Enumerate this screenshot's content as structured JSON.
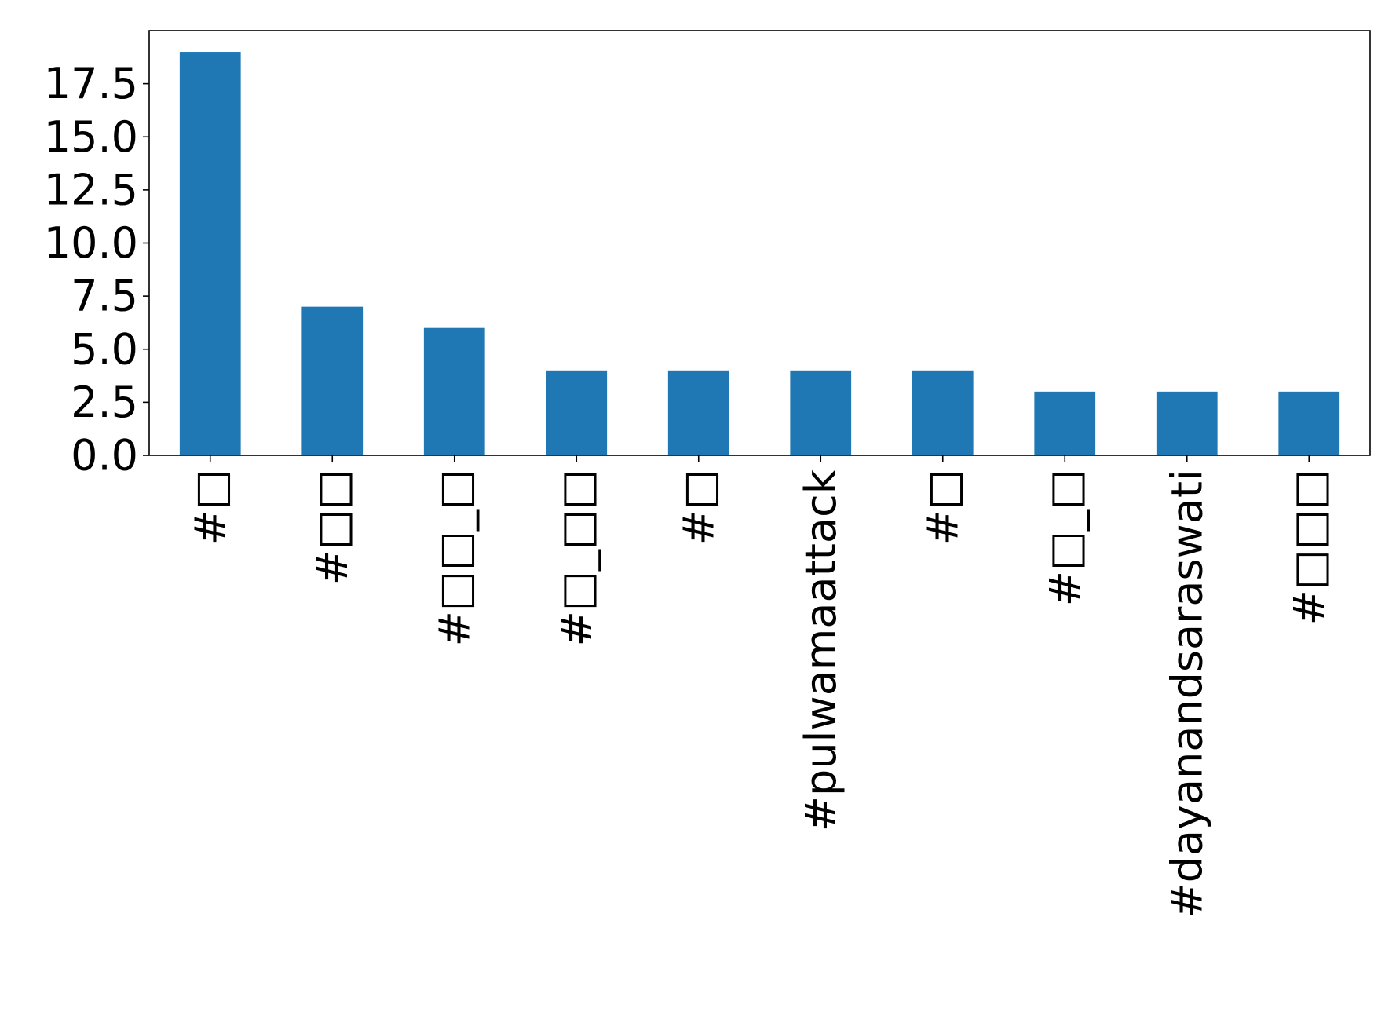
{
  "chart_data": {
    "type": "bar",
    "categories": [
      "#□",
      "#□□",
      "#□□_□",
      "#□_□□",
      "#□",
      "#pulwamaattack",
      "#□",
      "#□_□",
      "#dayanandsaraswati",
      "#□□□"
    ],
    "values": [
      19,
      7,
      6,
      4,
      4,
      4,
      4,
      3,
      3,
      3
    ],
    "title": "",
    "xlabel": "",
    "ylabel": "",
    "ylim": [
      0,
      20
    ],
    "yticks": [
      0.0,
      2.5,
      5.0,
      7.5,
      10.0,
      12.5,
      15.0,
      17.5
    ],
    "ytick_labels": [
      "0.0",
      "2.5",
      "5.0",
      "7.5",
      "10.0",
      "12.5",
      "15.0",
      "17.5"
    ],
    "grid": false,
    "legend": "none",
    "colors": {
      "bar": "#1f77b4",
      "axis": "#000000",
      "background": "#ffffff"
    }
  }
}
